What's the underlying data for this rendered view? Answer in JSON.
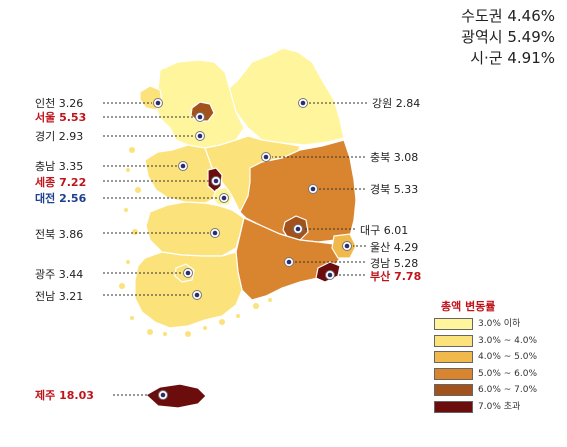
{
  "summary": [
    {
      "label": "수도권",
      "value": "4.46%"
    },
    {
      "label": "광역시",
      "value": "5.49%"
    },
    {
      "label": "시·군",
      "value": "4.91%"
    }
  ],
  "regions": [
    {
      "name": "인천",
      "value": "3.26",
      "style": "normal"
    },
    {
      "name": "서울",
      "value": "5.53",
      "style": "red"
    },
    {
      "name": "경기",
      "value": "2.93",
      "style": "normal"
    },
    {
      "name": "강원",
      "value": "2.84",
      "style": "normal"
    },
    {
      "name": "충남",
      "value": "3.35",
      "style": "normal"
    },
    {
      "name": "충북",
      "value": "3.08",
      "style": "normal"
    },
    {
      "name": "세종",
      "value": "7.22",
      "style": "red"
    },
    {
      "name": "경북",
      "value": "5.33",
      "style": "normal"
    },
    {
      "name": "대전",
      "value": "2.56",
      "style": "blue"
    },
    {
      "name": "대구",
      "value": "6.01",
      "style": "normal"
    },
    {
      "name": "전북",
      "value": "3.86",
      "style": "normal"
    },
    {
      "name": "울산",
      "value": "4.29",
      "style": "normal"
    },
    {
      "name": "경남",
      "value": "5.28",
      "style": "normal"
    },
    {
      "name": "광주",
      "value": "3.44",
      "style": "normal"
    },
    {
      "name": "부산",
      "value": "7.78",
      "style": "red"
    },
    {
      "name": "전남",
      "value": "3.21",
      "style": "normal"
    },
    {
      "name": "제주",
      "value": "18.03",
      "style": "red"
    }
  ],
  "legend": {
    "title": "총액 변동률",
    "items": [
      {
        "label": "3.0% 이하",
        "color": "#fff59d"
      },
      {
        "label": "3.0% ~ 4.0%",
        "color": "#fbe27a"
      },
      {
        "label": "4.0% ~ 5.0%",
        "color": "#f1b84c"
      },
      {
        "label": "5.0% ~ 6.0%",
        "color": "#d9852f"
      },
      {
        "label": "6.0% ~ 7.0%",
        "color": "#a2521c"
      },
      {
        "label": "7.0% 초과",
        "color": "#6b0d0d"
      }
    ]
  }
}
